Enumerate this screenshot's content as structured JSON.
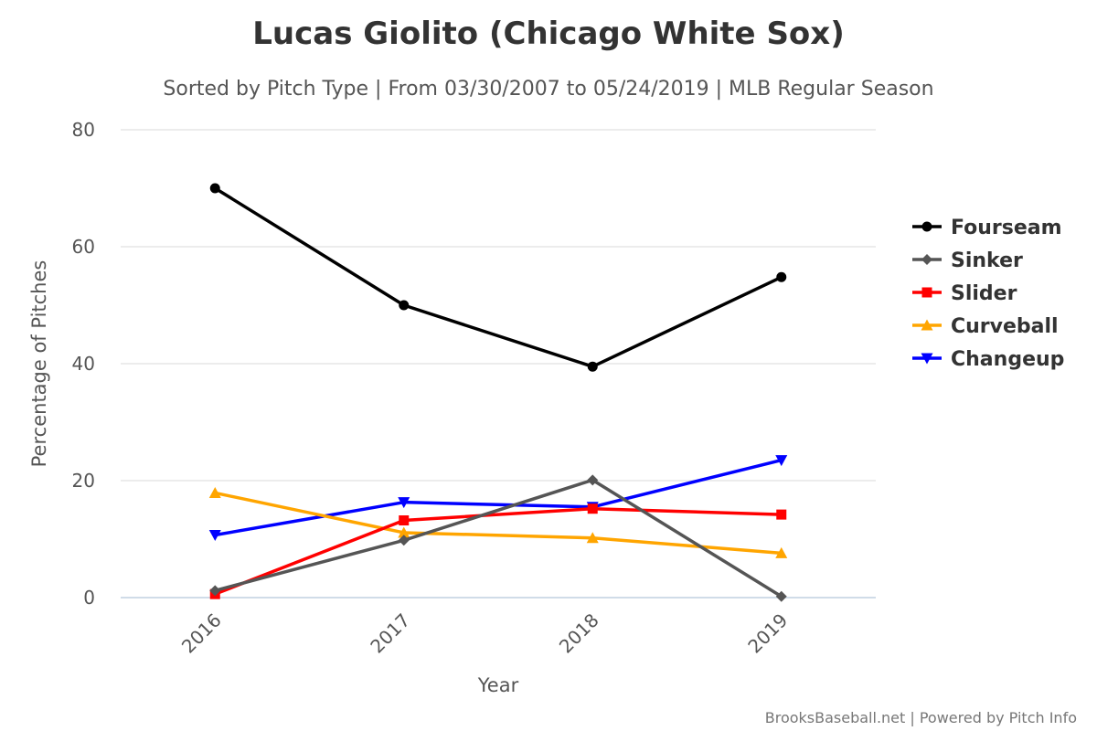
{
  "chart_data": {
    "type": "line",
    "title": "Lucas Giolito (Chicago White Sox)",
    "subtitle": "Sorted by Pitch Type | From 03/30/2007 to 05/24/2019 | MLB Regular Season",
    "xlabel": "Year",
    "ylabel": "Percentage of Pitches",
    "x": [
      "2016",
      "2017",
      "2018",
      "2019"
    ],
    "ylim": [
      0,
      80
    ],
    "yticks": [
      "0",
      "20",
      "40",
      "60",
      "80"
    ],
    "grid": true,
    "legend_position": "right",
    "series": [
      {
        "name": "Fourseam",
        "color": "#000000",
        "marker": "circle",
        "values": [
          70.0,
          50.0,
          39.5,
          54.8
        ]
      },
      {
        "name": "Sinker",
        "color": "#555555",
        "marker": "diamond",
        "values": [
          1.2,
          9.8,
          20.1,
          0.2
        ]
      },
      {
        "name": "Slider",
        "color": "#ff0000",
        "marker": "square",
        "values": [
          0.6,
          13.2,
          15.2,
          14.2
        ]
      },
      {
        "name": "Curveball",
        "color": "#ffa500",
        "marker": "triangle",
        "values": [
          17.9,
          11.1,
          10.2,
          7.6
        ]
      },
      {
        "name": "Changeup",
        "color": "#0000ff",
        "marker": "triangle-down",
        "values": [
          10.7,
          16.3,
          15.5,
          23.5
        ]
      }
    ]
  },
  "credits": "BrooksBaseball.net | Powered by Pitch Info"
}
